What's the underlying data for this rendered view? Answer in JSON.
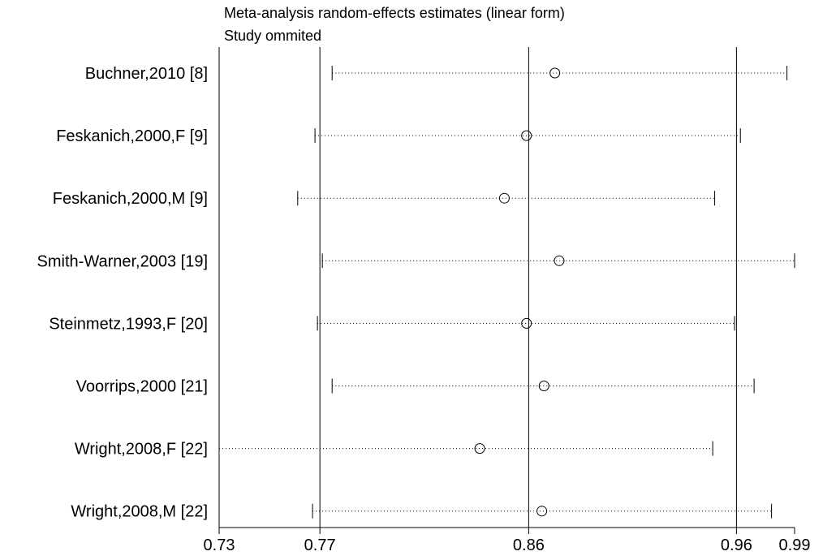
{
  "chart_data": {
    "type": "forest",
    "title": "Meta-analysis random-effects estimates (linear form)",
    "subtitle": "Study ommited",
    "x_scale": "log",
    "xlim": [
      0.73,
      0.99
    ],
    "xticks": [
      0.73,
      0.77,
      0.86,
      0.96,
      0.99
    ],
    "xtick_labels": [
      "0.73",
      "0.77",
      "0.86",
      "0.96",
      "0.99"
    ],
    "reference_lines": [
      0.77,
      0.86,
      0.96
    ],
    "studies": [
      {
        "label": "Buchner,2010 [8]",
        "estimate": 0.872,
        "lower": 0.775,
        "upper": 0.986
      },
      {
        "label": "Feskanich,2000,F [9]",
        "estimate": 0.859,
        "lower": 0.768,
        "upper": 0.962
      },
      {
        "label": "Feskanich,2000,M [9]",
        "estimate": 0.849,
        "lower": 0.761,
        "upper": 0.949
      },
      {
        "label": "Smith-Warner,2003 [19]",
        "estimate": 0.874,
        "lower": 0.771,
        "upper": 0.99
      },
      {
        "label": "Steinmetz,1993,F [20]",
        "estimate": 0.859,
        "lower": 0.769,
        "upper": 0.959
      },
      {
        "label": "Voorrips,2000 [21]",
        "estimate": 0.867,
        "lower": 0.775,
        "upper": 0.969
      },
      {
        "label": "Wright,2008,F [22]",
        "estimate": 0.838,
        "lower": 0.73,
        "upper": 0.948
      },
      {
        "label": "Wright,2008,M [22]",
        "estimate": 0.866,
        "lower": 0.767,
        "upper": 0.978
      }
    ]
  }
}
